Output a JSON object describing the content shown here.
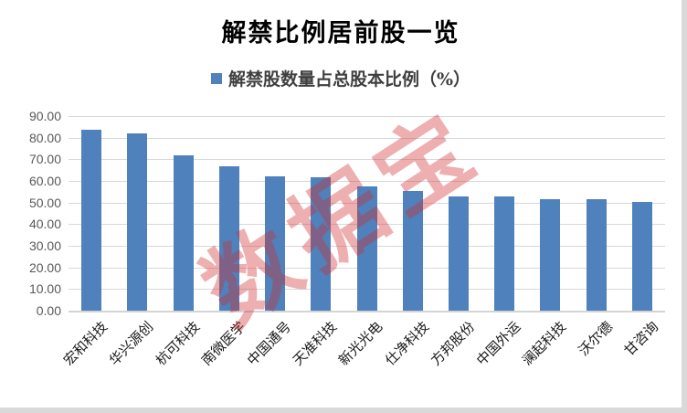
{
  "page": {
    "background_color": "#d9d9d9",
    "canvas_color": "#ffffff"
  },
  "chart_data": {
    "type": "bar",
    "title": "解禁比例居前股一览",
    "legend": {
      "label": "解禁股数量占总股本比例（%）",
      "marker_color": "#4F81BD",
      "position": "top"
    },
    "categories": [
      "宏和科技",
      "华兴源创",
      "杭可科技",
      "南微医学",
      "中国通号",
      "天准科技",
      "新光光电",
      "仕净科技",
      "方邦股份",
      "中国外运",
      "澜起科技",
      "沃尔德",
      "甘咨询"
    ],
    "values": [
      83.7,
      81.9,
      71.8,
      66.6,
      62.0,
      61.6,
      57.6,
      55.5,
      52.9,
      52.8,
      51.7,
      51.5,
      50.4
    ],
    "ylim": [
      0,
      90
    ],
    "y_ticks": [
      "90.00",
      "80.00",
      "70.00",
      "60.00",
      "50.00",
      "40.00",
      "30.00",
      "20.00",
      "10.00",
      "0.00"
    ],
    "grid": true,
    "bar_color": "#4F81BD",
    "gridline_color": "#d8d8d8",
    "axis_label_color": "#595959",
    "watermark": {
      "text": "数据宝",
      "color": "rgba(208,44,44,0.38)"
    }
  }
}
